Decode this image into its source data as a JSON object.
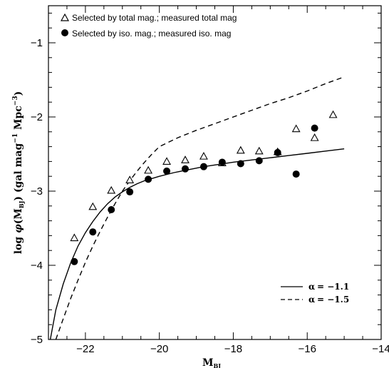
{
  "chart_data": {
    "type": "scatter",
    "xlabel": "M_{B_J}",
    "xlabel_main": "M",
    "xlabel_sub": "BJ",
    "ylabel": "log φ(M_{B_J}) (gal mag^{-1} Mpc^{-3})",
    "ylabel_parts": {
      "pre": "log ",
      "phi": "φ",
      "open": "(M",
      "sub": "BJ",
      "close": ")  (gal mag",
      "exp1": "−1",
      "mid": " Mpc",
      "exp2": "−3",
      "end": ")"
    },
    "xlim": [
      -23,
      -14
    ],
    "ylim": [
      -5,
      -0.5
    ],
    "x_ticks": [
      -22,
      -20,
      -18,
      -16,
      -14
    ],
    "x_tick_labels": [
      "−22",
      "−20",
      "−18",
      "−16",
      "−14"
    ],
    "y_ticks": [
      -1,
      -2,
      -3,
      -4,
      -5
    ],
    "y_tick_labels": [
      "−1",
      "−2",
      "−3",
      "−4",
      "−5"
    ],
    "grid": false,
    "legend_position": "top-left",
    "series": [
      {
        "name": "Selected by total mag.; measured total mag",
        "marker": "open-triangle",
        "x": [
          -22.3,
          -21.8,
          -21.3,
          -20.8,
          -20.3,
          -19.8,
          -19.3,
          -18.8,
          -18.3,
          -17.8,
          -17.3,
          -16.8,
          -16.3,
          -15.8,
          -15.3
        ],
        "y": [
          -3.63,
          -3.21,
          -2.99,
          -2.85,
          -2.72,
          -2.6,
          -2.58,
          -2.53,
          -2.62,
          -2.45,
          -2.46,
          -2.47,
          -2.16,
          -2.28,
          -1.97
        ]
      },
      {
        "name": "Selected by iso. mag.; measured iso. mag",
        "marker": "filled-circle",
        "x": [
          -22.3,
          -21.8,
          -21.3,
          -20.8,
          -20.3,
          -19.8,
          -19.3,
          -18.8,
          -18.3,
          -17.8,
          -17.3,
          -16.8,
          -16.3,
          -15.8
        ],
        "y": [
          -3.95,
          -3.55,
          -3.25,
          -3.01,
          -2.84,
          -2.73,
          -2.7,
          -2.67,
          -2.61,
          -2.63,
          -2.59,
          -2.48,
          -2.77,
          -2.15
        ]
      }
    ],
    "curves": [
      {
        "name": "α = −1.1",
        "label_alpha": "α",
        "label_value": "=  −1.1",
        "style": "solid",
        "x": [
          -22.95,
          -22.8,
          -22.6,
          -22.4,
          -22.2,
          -22.0,
          -21.8,
          -21.6,
          -21.4,
          -21.2,
          -21.0,
          -20.8,
          -20.6,
          -20.4,
          -20.2,
          -20.0,
          -19.6,
          -19.2,
          -18.8,
          -18.4,
          -18.0,
          -17.5,
          -17.0,
          -16.5,
          -16.0,
          -15.5,
          -15.0
        ],
        "y": [
          -5.0,
          -4.6,
          -4.25,
          -3.97,
          -3.74,
          -3.56,
          -3.41,
          -3.28,
          -3.17,
          -3.08,
          -3.01,
          -2.95,
          -2.9,
          -2.86,
          -2.83,
          -2.8,
          -2.75,
          -2.71,
          -2.67,
          -2.64,
          -2.61,
          -2.58,
          -2.55,
          -2.52,
          -2.49,
          -2.46,
          -2.43
        ]
      },
      {
        "name": "α = −1.5",
        "label_alpha": "α",
        "label_value": "=  −1.5",
        "style": "dashed",
        "x": [
          -22.8,
          -22.6,
          -22.4,
          -22.2,
          -22.0,
          -21.8,
          -21.6,
          -21.4,
          -21.2,
          -21.0,
          -20.8,
          -20.6,
          -20.4,
          -20.2,
          -20.0,
          -19.5,
          -19.0,
          -18.5,
          -18.0,
          -17.5,
          -17.0,
          -16.5,
          -16.0,
          -15.5,
          -15.0
        ],
        "y": [
          -5.0,
          -4.72,
          -4.45,
          -4.2,
          -3.96,
          -3.74,
          -3.54,
          -3.35,
          -3.17,
          -3.0,
          -2.86,
          -2.73,
          -2.61,
          -2.5,
          -2.4,
          -2.28,
          -2.18,
          -2.09,
          -2.0,
          -1.91,
          -1.82,
          -1.74,
          -1.65,
          -1.55,
          -1.46
        ]
      }
    ]
  }
}
